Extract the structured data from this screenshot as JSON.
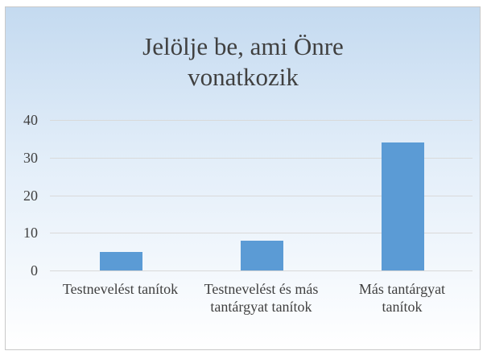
{
  "chart_data": {
    "type": "bar",
    "title": "Jelölje be, ami Önre vonatkozik",
    "categories": [
      "Testnevelést tanítok",
      "Testnevelést és más tantárgyat tanítok",
      "Más tantárgyat tanítok"
    ],
    "values": [
      5,
      8,
      34
    ],
    "color": "#5b9bd5",
    "ylim": [
      0,
      40
    ],
    "yticks": [
      0,
      10,
      20,
      30,
      40
    ],
    "grid": true
  }
}
